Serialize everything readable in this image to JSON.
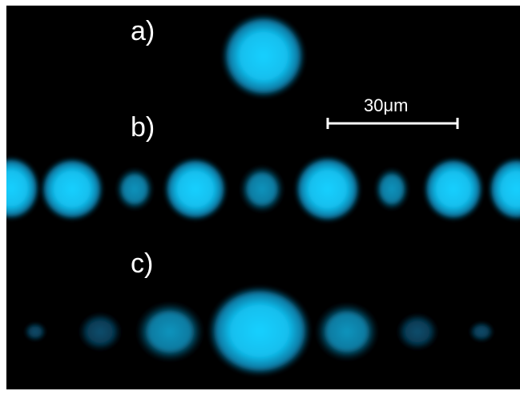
{
  "labels": {
    "a": "a)",
    "b": "b)",
    "c": "c)"
  },
  "scale_bar": {
    "text": "30μm"
  },
  "colors": {
    "background": "#000000",
    "spot_center": "#12c6f2",
    "spot_edge": "#0a6f98",
    "text": "#ffffff"
  }
}
